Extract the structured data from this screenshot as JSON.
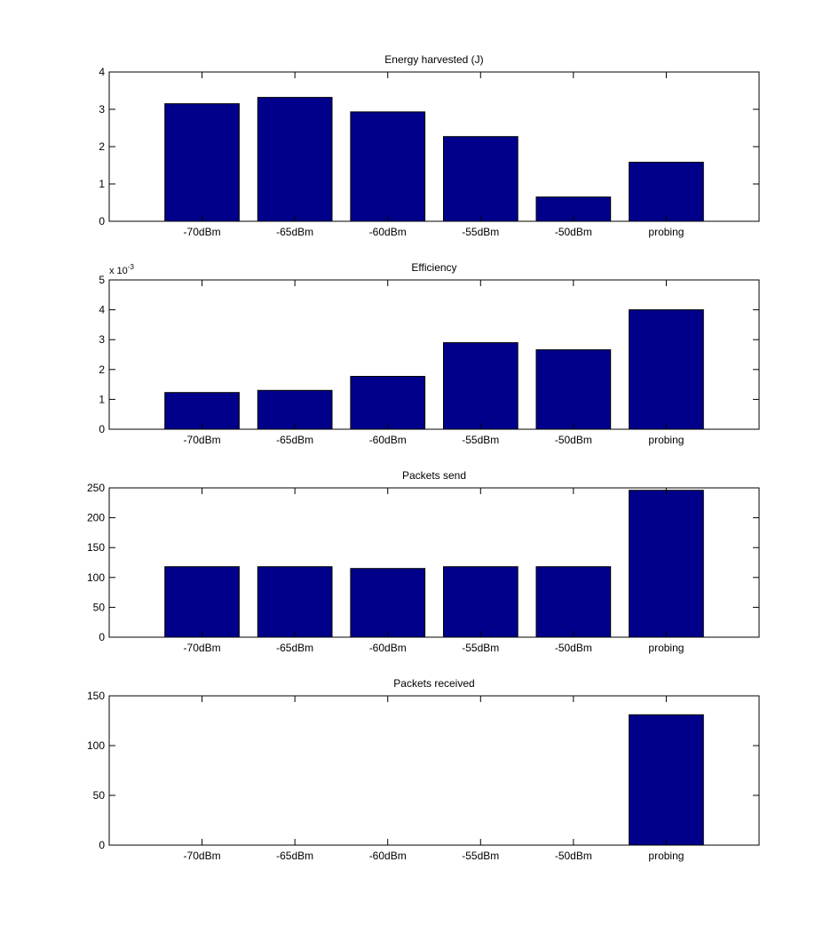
{
  "colors": {
    "bar_fill": "#00008B",
    "axes_edge": "#000000",
    "background": "#ffffff"
  },
  "chart_data": [
    {
      "type": "bar",
      "title": "Energy harvested (J)",
      "categories": [
        "-70dBm",
        "-65dBm",
        "-60dBm",
        "-55dBm",
        "-50dBm",
        "probing"
      ],
      "values": [
        3.15,
        3.32,
        2.93,
        2.27,
        0.65,
        1.58
      ],
      "xlabel": "",
      "ylabel": "",
      "ylim": [
        0,
        4
      ],
      "yticks": [
        0,
        1,
        2,
        3,
        4
      ],
      "ytick_labels": [
        "0",
        "1",
        "2",
        "3",
        "4"
      ],
      "exponent_label": null,
      "grid": false
    },
    {
      "type": "bar",
      "title": "Efficiency",
      "categories": [
        "-70dBm",
        "-65dBm",
        "-60dBm",
        "-55dBm",
        "-50dBm",
        "probing"
      ],
      "values": [
        0.00123,
        0.0013,
        0.00177,
        0.0029,
        0.00266,
        0.004
      ],
      "xlabel": "",
      "ylabel": "",
      "ylim": [
        0,
        0.005
      ],
      "yticks": [
        0,
        0.001,
        0.002,
        0.003,
        0.004,
        0.005
      ],
      "ytick_labels": [
        "0",
        "1",
        "2",
        "3",
        "4",
        "5"
      ],
      "exponent_label": {
        "base": "x 10",
        "power": "-3"
      },
      "grid": false
    },
    {
      "type": "bar",
      "title": "Packets send",
      "categories": [
        "-70dBm",
        "-65dBm",
        "-60dBm",
        "-55dBm",
        "-50dBm",
        "probing"
      ],
      "values": [
        118,
        118,
        115,
        118,
        118,
        246
      ],
      "xlabel": "",
      "ylabel": "",
      "ylim": [
        0,
        250
      ],
      "yticks": [
        0,
        50,
        100,
        150,
        200,
        250
      ],
      "ytick_labels": [
        "0",
        "50",
        "100",
        "150",
        "200",
        "250"
      ],
      "exponent_label": null,
      "grid": false
    },
    {
      "type": "bar",
      "title": "Packets received",
      "categories": [
        "-70dBm",
        "-65dBm",
        "-60dBm",
        "-55dBm",
        "-50dBm",
        "probing"
      ],
      "values": [
        0,
        0,
        0,
        0,
        0,
        131
      ],
      "xlabel": "",
      "ylabel": "",
      "ylim": [
        0,
        150
      ],
      "yticks": [
        0,
        50,
        100,
        150
      ],
      "ytick_labels": [
        "0",
        "50",
        "100",
        "150"
      ],
      "exponent_label": null,
      "grid": false
    }
  ]
}
